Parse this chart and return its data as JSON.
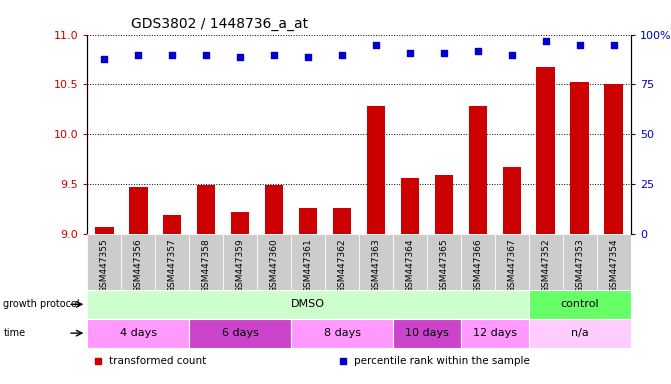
{
  "title": "GDS3802 / 1448736_a_at",
  "samples": [
    "GSM447355",
    "GSM447356",
    "GSM447357",
    "GSM447358",
    "GSM447359",
    "GSM447360",
    "GSM447361",
    "GSM447362",
    "GSM447363",
    "GSM447364",
    "GSM447365",
    "GSM447366",
    "GSM447367",
    "GSM447352",
    "GSM447353",
    "GSM447354"
  ],
  "bar_values": [
    9.07,
    9.47,
    9.19,
    9.49,
    9.22,
    9.49,
    9.26,
    9.26,
    10.28,
    9.56,
    9.59,
    10.28,
    9.67,
    10.68,
    10.52,
    10.5
  ],
  "percentile_values": [
    88,
    90,
    90,
    90,
    89,
    90,
    89,
    90,
    95,
    91,
    91,
    92,
    90,
    97,
    95,
    95
  ],
  "ylim_left": [
    9.0,
    11.0
  ],
  "ylim_right": [
    0,
    100
  ],
  "yticks_left": [
    9.0,
    9.5,
    10.0,
    10.5,
    11.0
  ],
  "yticks_right": [
    0,
    25,
    50,
    75,
    100
  ],
  "ytick_labels_right": [
    "0",
    "25",
    "50",
    "75",
    "100%"
  ],
  "bar_color": "#cc0000",
  "percentile_color": "#0000cc",
  "background_color": "#ffffff",
  "protocol_groups": [
    {
      "label": "DMSO",
      "start": 0,
      "end": 13,
      "color": "#ccffcc"
    },
    {
      "label": "control",
      "start": 13,
      "end": 16,
      "color": "#66ff66"
    }
  ],
  "time_groups": [
    {
      "label": "4 days",
      "start": 0,
      "end": 3,
      "color": "#ff99ff"
    },
    {
      "label": "6 days",
      "start": 3,
      "end": 6,
      "color": "#cc44cc"
    },
    {
      "label": "8 days",
      "start": 6,
      "end": 9,
      "color": "#ff99ff"
    },
    {
      "label": "10 days",
      "start": 9,
      "end": 11,
      "color": "#cc44cc"
    },
    {
      "label": "12 days",
      "start": 11,
      "end": 13,
      "color": "#ff99ff"
    },
    {
      "label": "n/a",
      "start": 13,
      "end": 16,
      "color": "#ffccff"
    }
  ],
  "legend_items": [
    {
      "label": "transformed count",
      "color": "#cc0000"
    },
    {
      "label": "percentile rank within the sample",
      "color": "#0000cc"
    }
  ],
  "xlabel_growth": "growth protocol",
  "xlabel_time": "time",
  "tick_bg_color": "#cccccc",
  "n_samples": 16
}
